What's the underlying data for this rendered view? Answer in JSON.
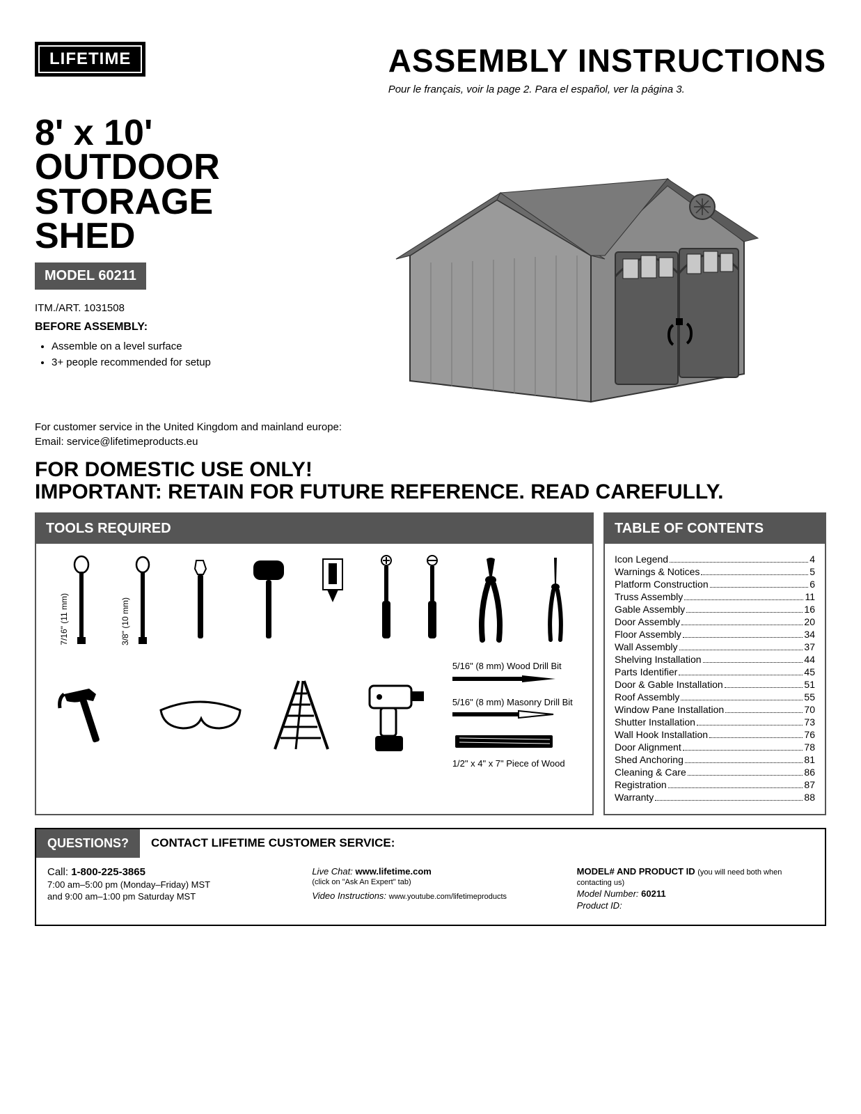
{
  "logo": "LIFETIME",
  "header": {
    "title": "ASSEMBLY INSTRUCTIONS",
    "lang_note": "Pour le français, voir la page 2. Para el español, ver la página 3."
  },
  "product": {
    "title_l1": "8' x 10' OUTDOOR",
    "title_l2": "STORAGE SHED",
    "model_label": "MODEL 60211",
    "itm": "ITM./ART. 1031508",
    "before_label": "BEFORE ASSEMBLY:",
    "bullets": [
      "Assemble on a level surface",
      "3+ people recommended for setup"
    ]
  },
  "shed_colors": {
    "wall": "#9a9a9a",
    "trim": "#4a4a4a",
    "roof": "#6b6b6b",
    "door": "#5a5a5a"
  },
  "customer_service": {
    "line1": "For customer service in the United Kingdom and mainland europe:",
    "line2": "Email: service@lifetimeproducts.eu"
  },
  "warn": {
    "l1": "FOR DOMESTIC USE ONLY!",
    "l2": "IMPORTANT: RETAIN FOR FUTURE REFERENCE. READ CAREFULLY."
  },
  "tools": {
    "heading": "TOOLS REQUIRED",
    "wrench1": "7/16\" (11 mm)",
    "wrench2": "3/8\" (10 mm)",
    "bit1": "5/16\" (8 mm) Wood Drill Bit",
    "bit2": "5/16\" (8 mm) Masonry Drill Bit",
    "wood": "1/2\" x 4\" x 7\" Piece of Wood"
  },
  "toc": {
    "heading": "TABLE OF CONTENTS",
    "items": [
      {
        "t": "Icon Legend",
        "p": "4"
      },
      {
        "t": "Warnings & Notices",
        "p": "5"
      },
      {
        "t": "Platform Construction",
        "p": "6"
      },
      {
        "t": "Truss Assembly",
        "p": "11"
      },
      {
        "t": "Gable Assembly",
        "p": "16"
      },
      {
        "t": "Door Assembly",
        "p": "20"
      },
      {
        "t": "Floor Assembly",
        "p": "34"
      },
      {
        "t": "Wall Assembly",
        "p": "37"
      },
      {
        "t": "Shelving Installation",
        "p": "44"
      },
      {
        "t": "Parts Identifier",
        "p": "45"
      },
      {
        "t": "Door & Gable Installation",
        "p": "51"
      },
      {
        "t": "Roof Assembly",
        "p": "55"
      },
      {
        "t": "Window Pane Installation",
        "p": "70"
      },
      {
        "t": "Shutter Installation",
        "p": "73"
      },
      {
        "t": "Wall Hook Installation",
        "p": "76"
      },
      {
        "t": "Door Alignment",
        "p": "78"
      },
      {
        "t": "Shed Anchoring",
        "p": "81"
      },
      {
        "t": "Cleaning & Care",
        "p": "86"
      },
      {
        "t": "Registration",
        "p": "87"
      },
      {
        "t": "Warranty",
        "p": "88"
      }
    ]
  },
  "questions": {
    "head": "QUESTIONS?",
    "contact": "CONTACT LIFETIME CUSTOMER SERVICE:",
    "call_label": "Call:",
    "call_num": "1-800-225-3865",
    "hours1": "7:00 am–5:00 pm (Monday–Friday) MST",
    "hours2": "and 9:00 am–1:00 pm Saturday MST",
    "livechat_label": "Live Chat:",
    "livechat_url": "www.lifetime.com",
    "livechat_note": "(click on \"Ask An Expert\" tab)",
    "video_label": "Video Instructions:",
    "video_url": "www.youtube.com/lifetimeproducts",
    "model_hdr": "MODEL# AND PRODUCT ID",
    "model_note": "(you will need both when contacting us)",
    "model_num_label": "Model Number:",
    "model_num": "60211",
    "prod_id_label": "Product ID:"
  }
}
